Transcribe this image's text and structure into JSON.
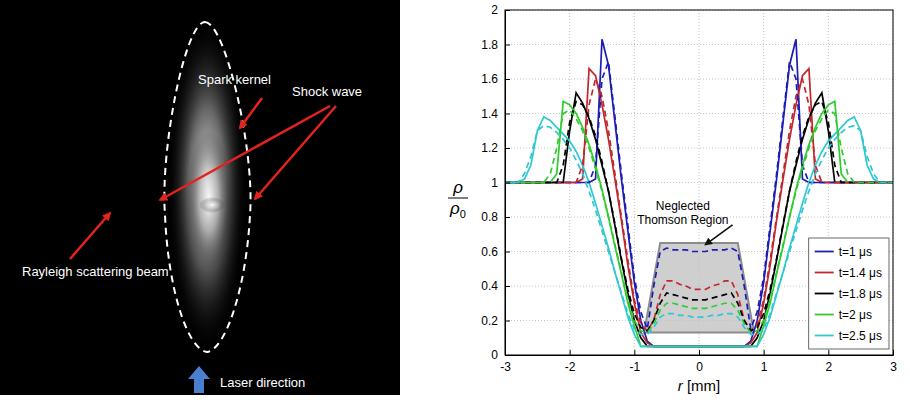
{
  "photo": {
    "labels": {
      "spark_kernel": "Spark kernel",
      "shock_wave": "Shock wave",
      "rayleigh": "Rayleigh scattering beam",
      "laser": "Laser direction"
    }
  },
  "chart_data": {
    "type": "line",
    "xlabel": "r [mm]",
    "ylabel": {
      "numerator": "ρ",
      "denominator": "ρ0"
    },
    "xlim": [
      -3,
      3
    ],
    "ylim": [
      0,
      2
    ],
    "xticks": [
      -3,
      -2,
      -1,
      0,
      1,
      2,
      3
    ],
    "yticks": [
      0,
      0.2,
      0.4,
      0.6,
      0.8,
      1,
      1.2,
      1.4,
      1.6,
      1.8,
      2
    ],
    "grid": true,
    "legend": "lower right",
    "x": [
      -3,
      -2.9,
      -2.8,
      -2.7,
      -2.6,
      -2.5,
      -2.4,
      -2.3,
      -2.2,
      -2.1,
      -2,
      -1.9,
      -1.8,
      -1.7,
      -1.6,
      -1.5,
      -1.4,
      -1.3,
      -1.2,
      -1.1,
      -1,
      -0.9,
      -0.8,
      -0.7,
      -0.6,
      -0.5,
      -0.4,
      -0.3,
      -0.2,
      -0.1,
      0,
      0.1,
      0.2,
      0.3,
      0.4,
      0.5,
      0.6,
      0.7,
      0.8,
      0.9,
      1,
      1.1,
      1.2,
      1.3,
      1.4,
      1.5,
      1.6,
      1.7,
      1.8,
      1.9,
      2,
      2.1,
      2.2,
      2.3,
      2.4,
      2.5,
      2.6,
      2.7,
      2.8,
      2.9,
      3
    ],
    "series": [
      {
        "name": "t=1 μs",
        "color": "#1c1cb4",
        "line_style": "solid",
        "values": [
          1,
          1,
          1,
          1,
          1,
          1,
          1,
          1,
          1,
          1,
          1,
          1,
          1,
          1,
          1.02,
          1.83,
          1.68,
          1.35,
          1.02,
          0.72,
          0.42,
          0.2,
          0.08,
          0.05,
          0.05,
          0.05,
          0.05,
          0.05,
          0.05,
          0.05,
          0.05,
          0.05,
          0.05,
          0.05,
          0.05,
          0.05,
          0.05,
          0.05,
          0.08,
          0.2,
          0.42,
          0.72,
          1.02,
          1.35,
          1.68,
          1.83,
          1.02,
          1,
          1,
          1,
          1,
          1,
          1,
          1,
          1,
          1,
          1,
          1,
          1,
          1,
          1
        ]
      },
      {
        "name": "t=1.4 μs",
        "color": "#c0282d",
        "line_style": "solid",
        "values": [
          1,
          1,
          1,
          1,
          1,
          1,
          1,
          1,
          1,
          1,
          1,
          1,
          1.02,
          1.66,
          1.62,
          1.45,
          1.25,
          1.02,
          0.78,
          0.52,
          0.3,
          0.13,
          0.07,
          0.05,
          0.05,
          0.05,
          0.05,
          0.05,
          0.05,
          0.05,
          0.05,
          0.05,
          0.05,
          0.05,
          0.05,
          0.05,
          0.05,
          0.05,
          0.07,
          0.13,
          0.3,
          0.52,
          0.78,
          1.02,
          1.25,
          1.45,
          1.62,
          1.66,
          1.02,
          1,
          1,
          1,
          1,
          1,
          1,
          1,
          1,
          1,
          1,
          1,
          1
        ]
      },
      {
        "name": "t=1.8 μs",
        "color": "#000000",
        "line_style": "solid",
        "values": [
          1,
          1,
          1,
          1,
          1,
          1,
          1,
          1,
          1,
          1,
          1.3,
          1.52,
          1.46,
          1.37,
          1.25,
          1.1,
          0.95,
          0.75,
          0.55,
          0.36,
          0.2,
          0.1,
          0.05,
          0.05,
          0.05,
          0.05,
          0.05,
          0.05,
          0.05,
          0.05,
          0.05,
          0.05,
          0.05,
          0.05,
          0.05,
          0.05,
          0.05,
          0.05,
          0.05,
          0.1,
          0.2,
          0.36,
          0.55,
          0.75,
          0.95,
          1.1,
          1.25,
          1.37,
          1.46,
          1.52,
          1.3,
          1,
          1,
          1,
          1,
          1,
          1,
          1,
          1,
          1,
          1
        ]
      },
      {
        "name": "t=2 μs",
        "color": "#2ecc2e",
        "line_style": "solid",
        "values": [
          1,
          1,
          1,
          1,
          1,
          1,
          1,
          1,
          1.05,
          1.47,
          1.45,
          1.4,
          1.32,
          1.22,
          1.1,
          0.96,
          0.8,
          0.63,
          0.47,
          0.3,
          0.17,
          0.05,
          0.05,
          0.05,
          0.05,
          0.05,
          0.05,
          0.05,
          0.05,
          0.05,
          0.05,
          0.05,
          0.05,
          0.05,
          0.05,
          0.05,
          0.05,
          0.05,
          0.05,
          0.05,
          0.17,
          0.3,
          0.47,
          0.63,
          0.8,
          0.96,
          1.1,
          1.22,
          1.32,
          1.4,
          1.45,
          1.47,
          1.05,
          1,
          1,
          1,
          1,
          1,
          1,
          1,
          1
        ]
      },
      {
        "name": "t=2.5 μs",
        "color": "#2ec8d2",
        "line_style": "solid",
        "values": [
          1,
          1,
          1,
          1.02,
          1.1,
          1.3,
          1.38,
          1.36,
          1.32,
          1.28,
          1.24,
          1.18,
          1.1,
          1,
          0.88,
          0.75,
          0.62,
          0.48,
          0.35,
          0.22,
          0.12,
          0.05,
          0.05,
          0.05,
          0.05,
          0.05,
          0.05,
          0.05,
          0.05,
          0.05,
          0.05,
          0.05,
          0.05,
          0.05,
          0.05,
          0.05,
          0.05,
          0.05,
          0.05,
          0.05,
          0.12,
          0.22,
          0.35,
          0.48,
          0.62,
          0.75,
          0.88,
          1,
          1.1,
          1.18,
          1.24,
          1.28,
          1.32,
          1.36,
          1.38,
          1.3,
          1.1,
          1.02,
          1,
          1,
          1
        ]
      },
      {
        "color": "#1c1cb4",
        "line_style": "dashed",
        "values": [
          1,
          1,
          1,
          1,
          1,
          1,
          1,
          1,
          1,
          1,
          1,
          1,
          1,
          1,
          1.1,
          1.6,
          1.7,
          1.38,
          1.05,
          0.75,
          0.45,
          0.25,
          0.15,
          0.4,
          0.6,
          0.62,
          0.61,
          0.61,
          0.61,
          0.6,
          0.6,
          0.6,
          0.61,
          0.61,
          0.61,
          0.62,
          0.6,
          0.4,
          0.15,
          0.25,
          0.45,
          0.75,
          1.05,
          1.38,
          1.7,
          1.6,
          1.1,
          1,
          1,
          1,
          1,
          1,
          1,
          1,
          1,
          1,
          1,
          1,
          1,
          1,
          1
        ]
      },
      {
        "color": "#c0282d",
        "line_style": "dashed",
        "values": [
          1,
          1,
          1,
          1,
          1,
          1,
          1,
          1,
          1,
          1,
          1,
          1,
          1.1,
          1.45,
          1.6,
          1.5,
          1.3,
          1.05,
          0.8,
          0.55,
          0.32,
          0.18,
          0.14,
          0.2,
          0.35,
          0.43,
          0.43,
          0.41,
          0.4,
          0.38,
          0.38,
          0.38,
          0.4,
          0.41,
          0.43,
          0.43,
          0.35,
          0.2,
          0.14,
          0.18,
          0.32,
          0.55,
          0.8,
          1.05,
          1.3,
          1.5,
          1.6,
          1.45,
          1.1,
          1,
          1,
          1,
          1,
          1,
          1,
          1,
          1,
          1,
          1,
          1,
          1
        ]
      },
      {
        "color": "#000000",
        "line_style": "dashed",
        "values": [
          1,
          1,
          1,
          1,
          1,
          1,
          1,
          1,
          1,
          1.1,
          1.35,
          1.47,
          1.45,
          1.38,
          1.27,
          1.12,
          0.95,
          0.76,
          0.56,
          0.38,
          0.24,
          0.16,
          0.14,
          0.2,
          0.3,
          0.36,
          0.35,
          0.34,
          0.33,
          0.32,
          0.32,
          0.32,
          0.33,
          0.34,
          0.35,
          0.36,
          0.3,
          0.2,
          0.14,
          0.16,
          0.24,
          0.38,
          0.56,
          0.76,
          0.95,
          1.12,
          1.27,
          1.38,
          1.45,
          1.47,
          1.35,
          1.1,
          1,
          1,
          1,
          1,
          1,
          1,
          1,
          1,
          1
        ]
      },
      {
        "color": "#2ecc2e",
        "line_style": "dashed",
        "values": [
          1,
          1,
          1,
          1,
          1,
          1,
          1,
          1.05,
          1.2,
          1.4,
          1.42,
          1.37,
          1.3,
          1.2,
          1.08,
          0.95,
          0.8,
          0.64,
          0.48,
          0.32,
          0.2,
          0.14,
          0.13,
          0.18,
          0.26,
          0.3,
          0.3,
          0.29,
          0.28,
          0.27,
          0.27,
          0.27,
          0.28,
          0.29,
          0.3,
          0.3,
          0.26,
          0.18,
          0.13,
          0.14,
          0.2,
          0.32,
          0.48,
          0.64,
          0.8,
          0.95,
          1.08,
          1.2,
          1.3,
          1.37,
          1.42,
          1.4,
          1.2,
          1.05,
          1,
          1,
          1,
          1,
          1,
          1,
          1
        ]
      },
      {
        "color": "#2ec8d2",
        "line_style": "dashed",
        "values": [
          1,
          1,
          1,
          1.05,
          1.15,
          1.3,
          1.33,
          1.32,
          1.29,
          1.25,
          1.2,
          1.13,
          1.05,
          0.95,
          0.84,
          0.72,
          0.6,
          0.48,
          0.36,
          0.24,
          0.15,
          0.12,
          0.12,
          0.16,
          0.22,
          0.24,
          0.24,
          0.23,
          0.23,
          0.22,
          0.22,
          0.22,
          0.23,
          0.23,
          0.24,
          0.24,
          0.22,
          0.16,
          0.12,
          0.12,
          0.15,
          0.24,
          0.36,
          0.48,
          0.6,
          0.72,
          0.84,
          0.95,
          1.05,
          1.13,
          1.2,
          1.25,
          1.29,
          1.32,
          1.33,
          1.3,
          1.15,
          1.05,
          1,
          1,
          1
        ]
      }
    ],
    "annotations": [
      {
        "text": "Neglected Thomson Region",
        "x": -0.25,
        "y": 0.76,
        "arrow_to": [
          0.1,
          0.64
        ],
        "region_x": [
          -0.85,
          -0.6,
          0.6,
          0.85
        ],
        "region_y": [
          0.13,
          0.65,
          0.65,
          0.13
        ]
      }
    ]
  }
}
